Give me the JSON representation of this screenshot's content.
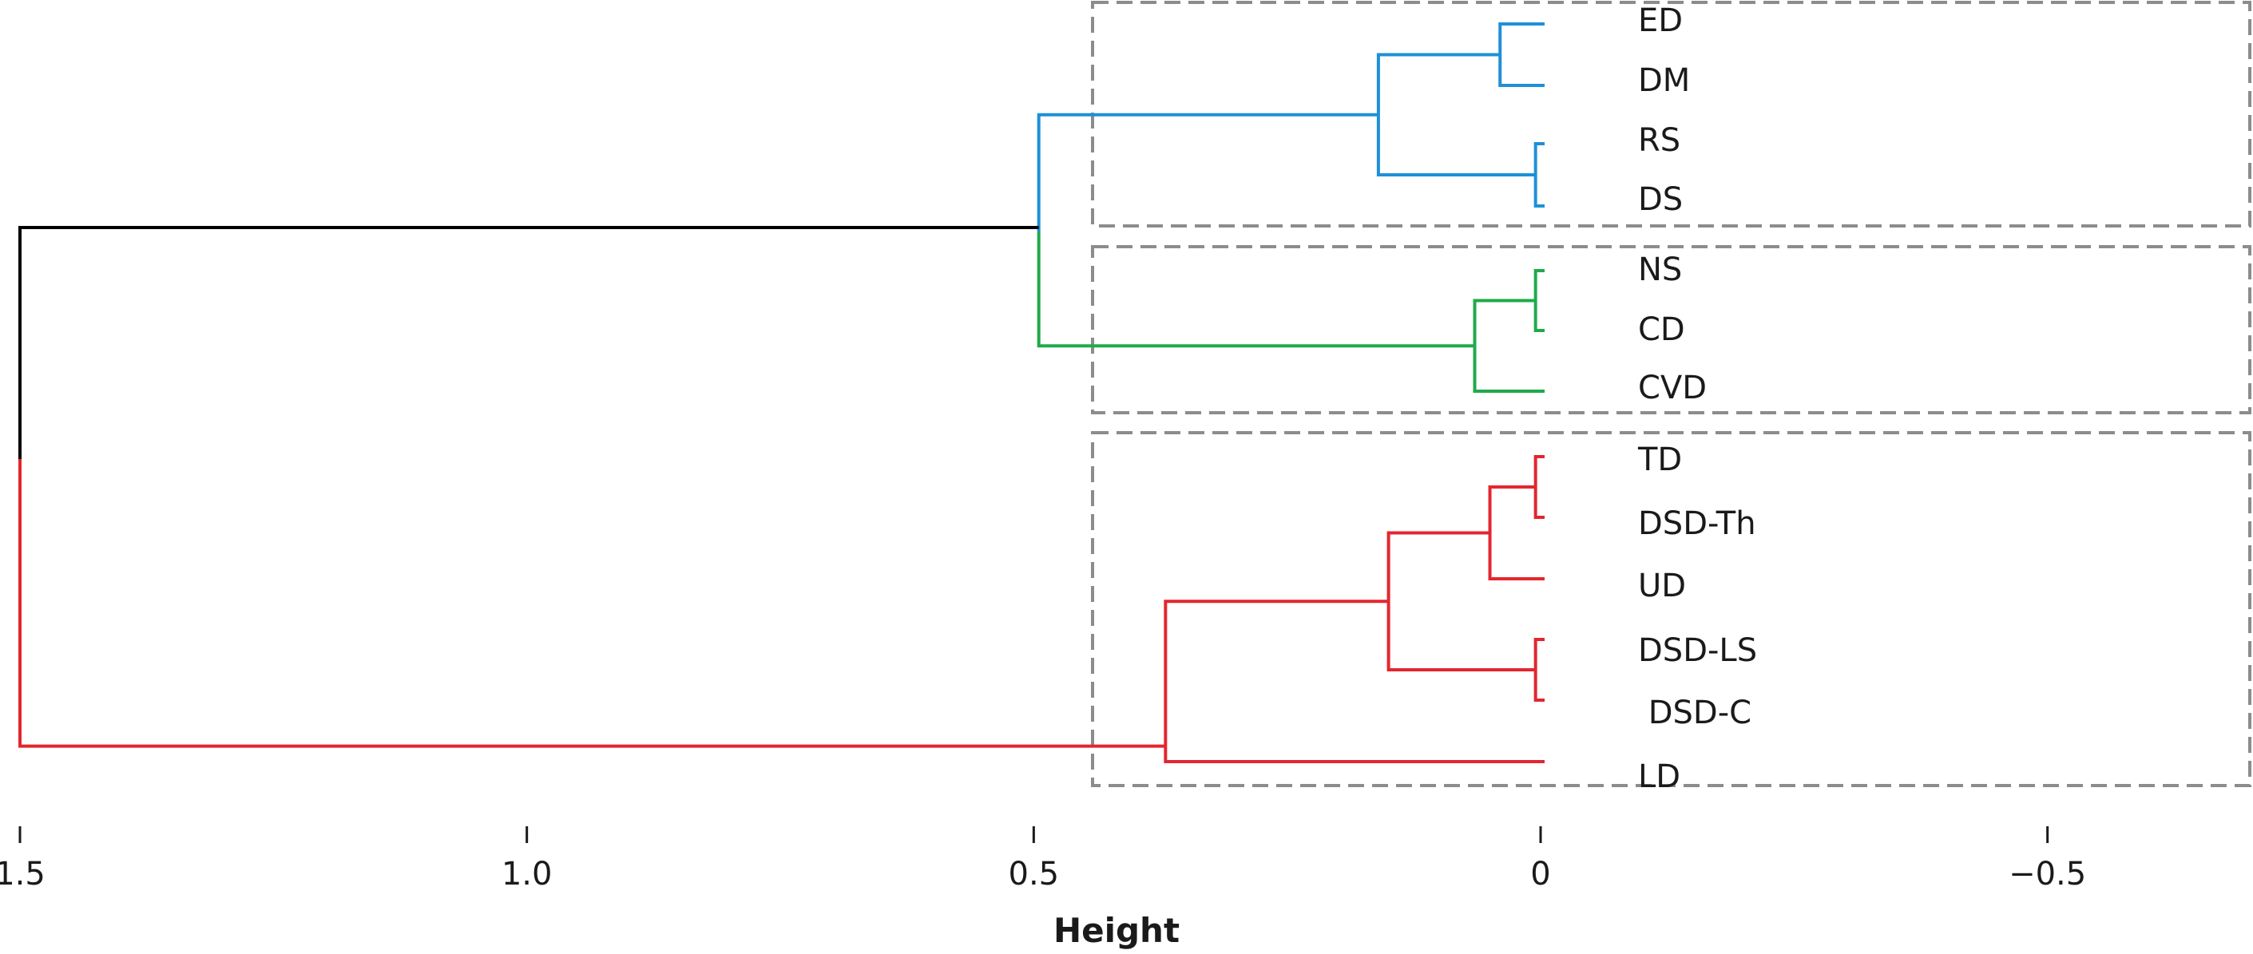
{
  "chart_data": {
    "type": "dendrogram",
    "xlabel": "Height",
    "xlim": [
      1.5,
      -0.7
    ],
    "ticks": [
      {
        "value": 1.5,
        "label": "1.5"
      },
      {
        "value": 1.0,
        "label": "1.0"
      },
      {
        "value": 0.5,
        "label": "0.5"
      },
      {
        "value": 0,
        "label": "0"
      },
      {
        "value": -0.5,
        "label": "−0.5"
      }
    ],
    "leaves": [
      "ED",
      "DM",
      "RS",
      "DS",
      "NS",
      "CD",
      "CVD",
      "TD",
      "DSD-Th",
      "UD",
      "DSD-LS",
      " DSD-C",
      "LD"
    ],
    "colors": {
      "blue": "#1e90d6",
      "green": "#1faa4a",
      "red": "#e3262f",
      "root": "#000000"
    },
    "merges": [
      {
        "a": "ED",
        "b": "DM",
        "height": 0.04,
        "color": "blue"
      },
      {
        "a": "RS",
        "b": "DS",
        "height": 0.005,
        "color": "blue"
      },
      {
        "a": "ED+DM",
        "b": "RS+DS",
        "height": 0.16,
        "color": "blue"
      },
      {
        "a": "NS",
        "b": "CD",
        "height": 0.005,
        "color": "green"
      },
      {
        "a": "NS+CD",
        "b": "CVD",
        "height": 0.065,
        "color": "green"
      },
      {
        "a": "blue",
        "b": "green",
        "height": 0.495,
        "color": "blue-green"
      },
      {
        "a": "TD",
        "b": "DSD-Th",
        "height": 0.005,
        "color": "red"
      },
      {
        "a": "TD+DSD-Th",
        "b": "UD",
        "height": 0.05,
        "color": "red"
      },
      {
        "a": "DSD-LS",
        "b": "DSD-C",
        "height": 0.005,
        "color": "red"
      },
      {
        "a": "TD..UD",
        "b": "DSD-LS+DSD-C",
        "height": 0.15,
        "color": "red"
      },
      {
        "a": "TD..DSD-C",
        "b": "LD",
        "height": 0.37,
        "color": "red"
      },
      {
        "a": "blue+green",
        "b": "red",
        "height": 1.5,
        "color": "root"
      }
    ],
    "clusters": [
      {
        "leaves": [
          "ED",
          "DM",
          "RS",
          "DS"
        ],
        "color": "blue"
      },
      {
        "leaves": [
          "NS",
          "CD",
          "CVD"
        ],
        "color": "green"
      },
      {
        "leaves": [
          "TD",
          "DSD-Th",
          "UD",
          "DSD-LS",
          " DSD-C",
          "LD"
        ],
        "color": "red"
      }
    ],
    "grid": false,
    "legend": "none"
  }
}
